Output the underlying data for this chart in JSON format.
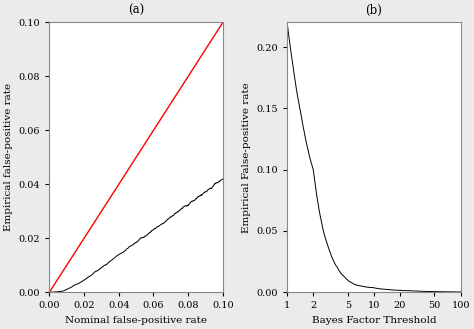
{
  "panel_a": {
    "title": "(a)",
    "xlabel": "Nominal false-positive rate",
    "ylabel": "Empirical false-positive rate",
    "xlim": [
      0.0,
      0.1
    ],
    "ylim": [
      0.0,
      0.1
    ],
    "xticks": [
      0.0,
      0.02,
      0.04,
      0.06,
      0.08,
      0.1
    ],
    "yticks": [
      0.0,
      0.02,
      0.04,
      0.06,
      0.08,
      0.1
    ],
    "diagonal_color": "#FF0000",
    "curve_color": "#000000"
  },
  "panel_b": {
    "title": "(b)",
    "xlabel": "Bayes Factor Threshold",
    "ylabel": "Empirical False-positive rate",
    "xlim": [
      1,
      100
    ],
    "ylim": [
      0.0,
      0.22
    ],
    "xticks": [
      1,
      2,
      5,
      10,
      20,
      50,
      100
    ],
    "ytick_values": [
      0.0,
      0.05,
      0.1,
      0.15,
      0.2
    ],
    "ytick_labels": [
      "0.00",
      "0.05",
      "0.10",
      "0.15",
      "0.20"
    ],
    "curve_color": "#000000"
  },
  "bg_color": "#EBEBEB",
  "plot_bg_color": "#FFFFFF",
  "font_size": 7.5,
  "title_font_size": 8.5
}
